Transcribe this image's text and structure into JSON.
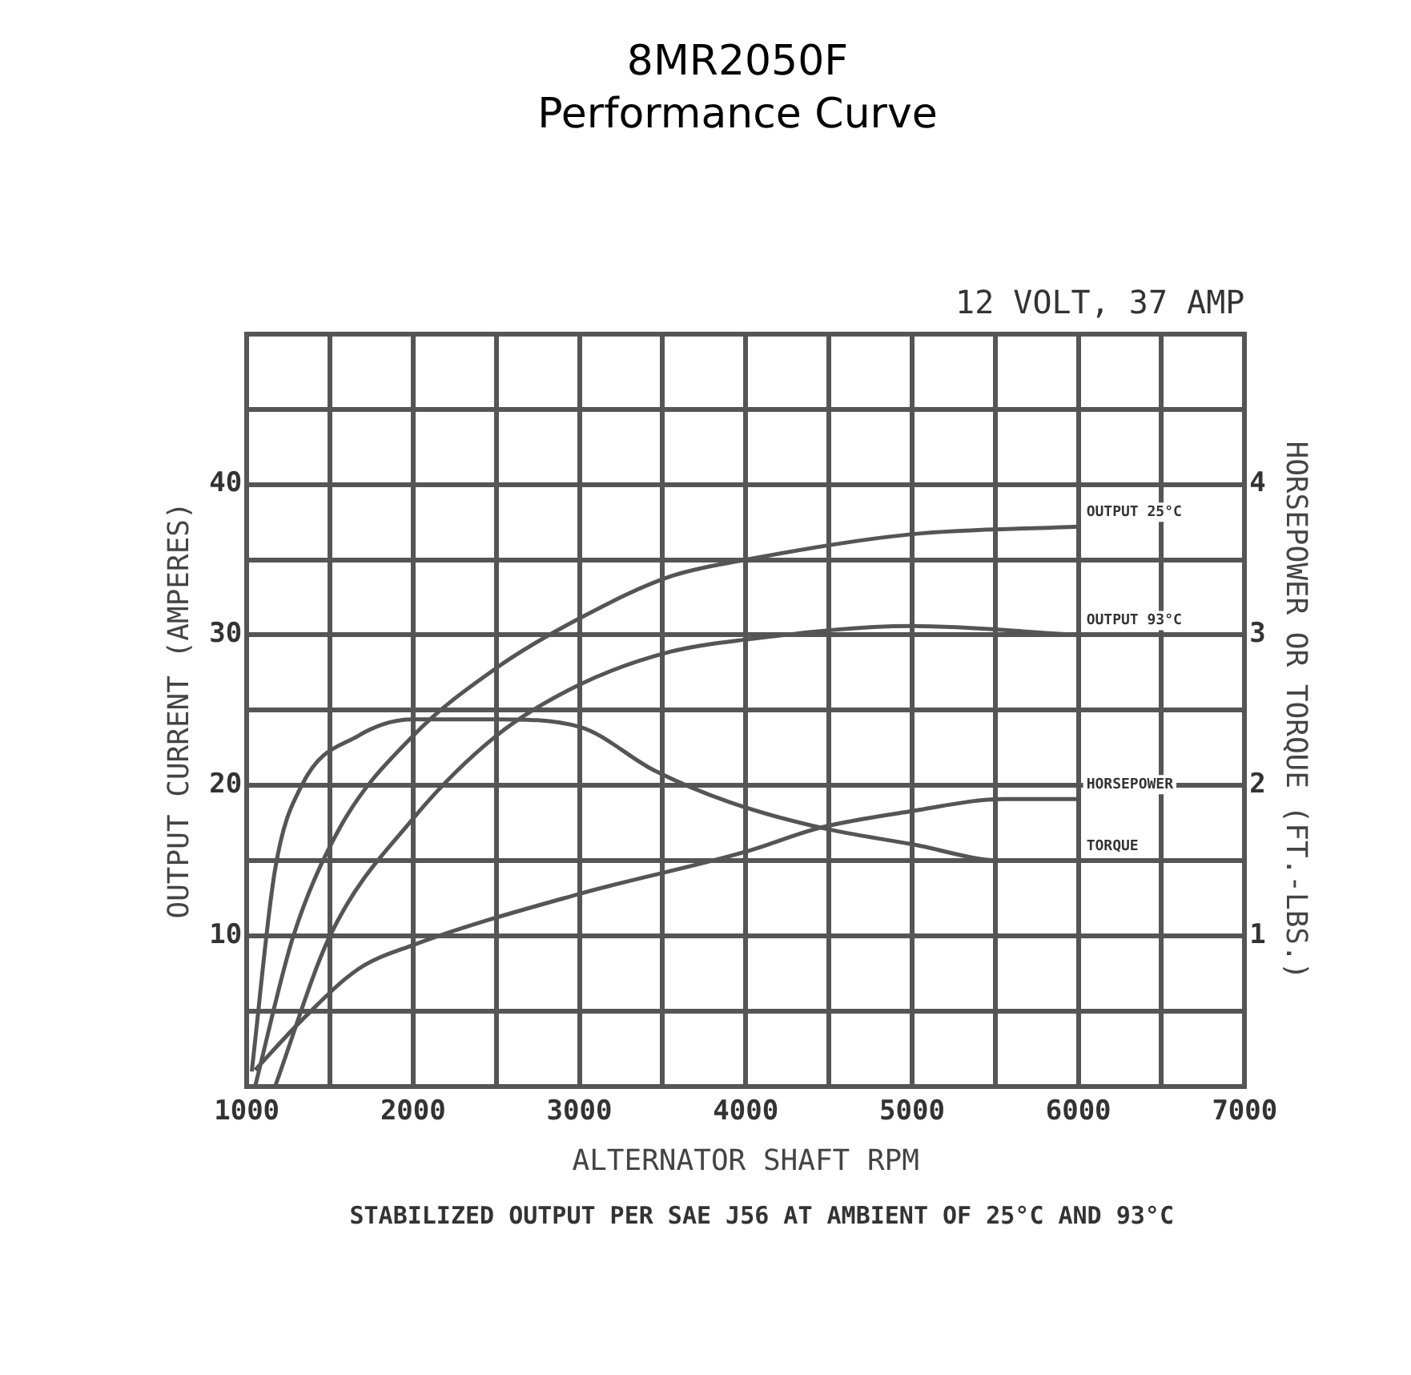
{
  "chart_data": {
    "type": "line",
    "title": "8MR2050F",
    "subtitle": "Performance Curve",
    "xlabel": "ALTERNATOR SHAFT RPM",
    "ylabel": "OUTPUT CURRENT (AMPERES)",
    "y2label": "HORSEPOWER OR TORQUE (FT.-LBS.)",
    "annotations": [
      "12 VOLT, 37 AMP",
      "STABILIZED OUTPUT PER SAE J56 AT AMBIENT OF 25°C AND 93°C"
    ],
    "xlim": [
      1000,
      7000
    ],
    "xticks": [
      1000,
      {
        "value": 1500,
        "label": null
      },
      2000,
      {
        "value": 2500,
        "label": null
      },
      3000,
      {
        "value": 3500,
        "label": null
      },
      4000,
      {
        "value": 4500,
        "label": null
      },
      5000,
      {
        "value": 5500,
        "label": null
      },
      6000,
      {
        "value": 6500,
        "label": null
      },
      7000
    ],
    "ylim": [
      0,
      50
    ],
    "yticks": [
      {
        "value": 5,
        "label": null
      },
      10,
      {
        "value": 15,
        "label": null
      },
      20,
      {
        "value": 25,
        "label": null
      },
      30,
      {
        "value": 35,
        "label": null
      },
      40,
      {
        "value": 45,
        "label": null
      },
      {
        "value": 50,
        "label": null
      }
    ],
    "y2lim": [
      0,
      5
    ],
    "y2ticks": [
      1,
      2,
      3,
      4
    ],
    "grid": true,
    "legend": false,
    "marker": "none",
    "line_style": "solid",
    "series": [
      {
        "name": "OUTPUT 25°C",
        "color": "#555555",
        "x": [
          1050,
          1280,
          1560,
          2000,
          2500,
          3000,
          3550,
          4000,
          5000,
          6000
        ],
        "values": [
          0,
          10,
          17.2,
          23.3,
          27.8,
          31.1,
          33.9,
          35,
          36.7,
          37.2
        ]
      },
      {
        "name": "OUTPUT 93°C",
        "color": "#555555",
        "x": [
          1170,
          1500,
          2000,
          2500,
          3000,
          3550,
          4000,
          5000,
          6000
        ],
        "values": [
          0,
          10,
          17.8,
          23.3,
          26.7,
          28.9,
          29.7,
          30.6,
          30
        ]
      },
      {
        "name": "HORSEPOWER",
        "color": "#555555",
        "axis": "y2",
        "x": [
          1050,
          1330,
          1670,
          2000,
          3000,
          4000,
          4450,
          5000,
          5550,
          6000
        ],
        "values": [
          0.11,
          0.44,
          0.78,
          0.94,
          1.28,
          1.56,
          1.72,
          1.83,
          1.91,
          1.91
        ]
      },
      {
        "name": "TORQUE",
        "color": "#555555",
        "axis": "y2",
        "x": [
          1030,
          1170,
          1330,
          1670,
          2000,
          2500,
          3000,
          3450,
          3900,
          4450,
          5000,
          5550,
          6000
        ],
        "values": [
          0.1,
          1.44,
          2.0,
          2.33,
          2.44,
          2.44,
          2.39,
          2.1,
          1.89,
          1.72,
          1.61,
          1.5,
          1.5
        ]
      }
    ]
  }
}
